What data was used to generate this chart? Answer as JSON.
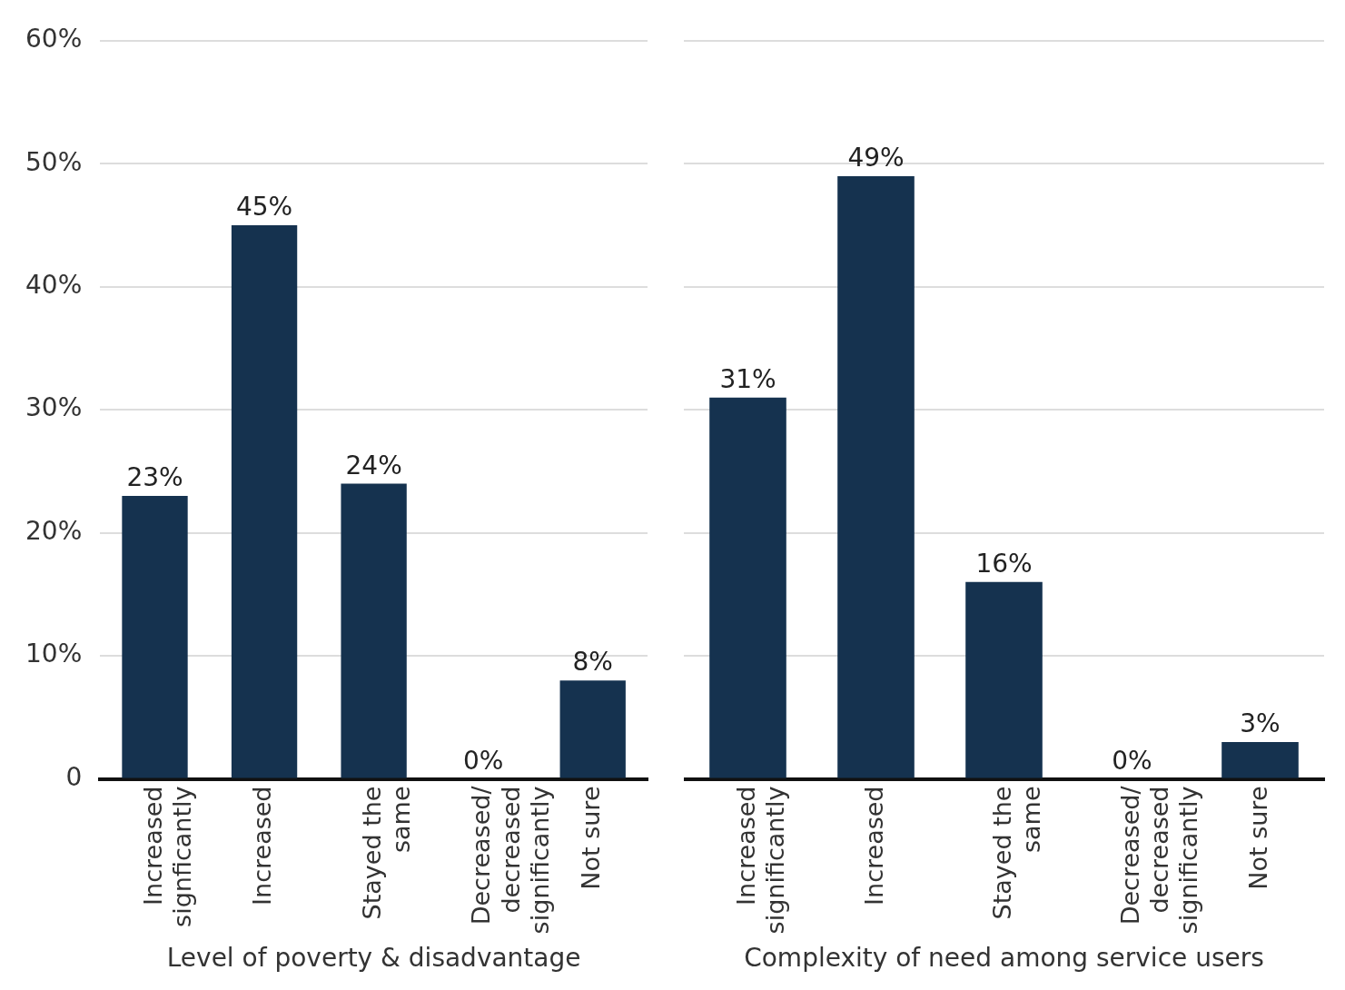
{
  "chart_data": [
    {
      "type": "bar",
      "categories": [
        "Increased signficantly",
        "Increased",
        "Stayed the same",
        "Decreased/decreased significantly",
        "Not sure"
      ],
      "values": [
        23,
        45,
        24,
        0,
        8
      ],
      "value_labels": [
        "23%",
        "45%",
        "24%",
        "0%",
        "8%"
      ],
      "color": "#15324f",
      "xlabel": "Level of poverty & disadvantage",
      "ylim": [
        0,
        60
      ],
      "yticks": [
        0,
        {
          "value": 10,
          "label": "10%"
        },
        {
          "value": 20,
          "label": "20%"
        },
        {
          "value": 30,
          "label": "30%"
        },
        {
          "value": 40,
          "label": "40%"
        },
        {
          "value": 50,
          "label": "50%"
        },
        {
          "value": 60,
          "label": "60%"
        }
      ],
      "grid": "y"
    },
    {
      "type": "bar",
      "categories": [
        "Increased significantly",
        "Increased",
        "Stayed the same",
        "Decreased/decreased significantly",
        "Not sure"
      ],
      "values": [
        31,
        49,
        16,
        0,
        3
      ],
      "value_labels": [
        "31%",
        "49%",
        "16%",
        "0%",
        "3%"
      ],
      "color": "#15324f",
      "xlabel": "Complexity of need among service users",
      "ylim": [
        0,
        60
      ],
      "yticks": [
        {
          "value": 0,
          "label": null
        },
        {
          "value": 10,
          "label": null
        },
        {
          "value": 20,
          "label": null
        },
        {
          "value": 30,
          "label": null
        },
        {
          "value": 40,
          "label": null
        },
        {
          "value": 50,
          "label": null
        },
        {
          "value": 60,
          "label": null
        }
      ],
      "grid": "y",
      "tick_labels": "x"
    }
  ]
}
